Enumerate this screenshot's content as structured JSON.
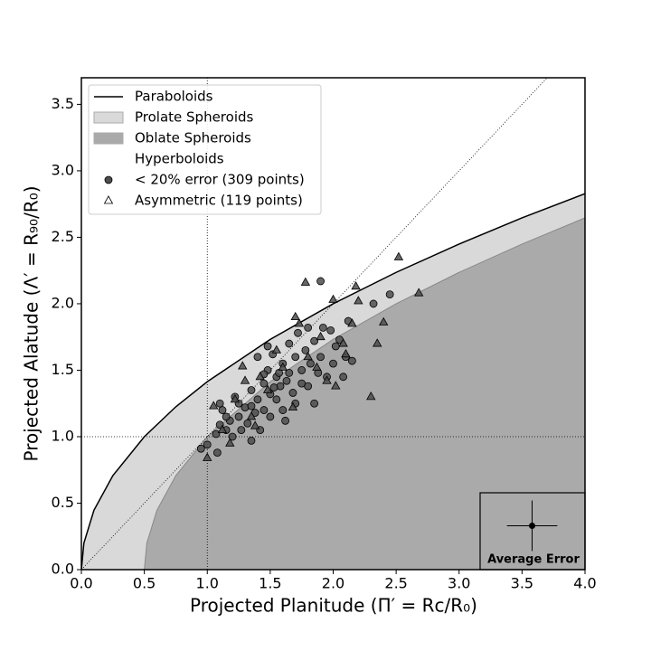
{
  "chart_data": {
    "type": "scatter",
    "xlabel": "Projected Planitude (Π′ = Rc/R₀)",
    "ylabel": "Projected Alatude (Λ′ = R₉₀/R₀)",
    "xlim": [
      0,
      4
    ],
    "ylim": [
      0,
      3.7
    ],
    "xticks": [
      {
        "value": 0,
        "label": "0.0"
      },
      {
        "value": 0.5,
        "label": "0.5"
      },
      {
        "value": 1,
        "label": "1.0"
      },
      {
        "value": 1.5,
        "label": "1.5"
      },
      {
        "value": 2,
        "label": "2.0"
      },
      {
        "value": 2.5,
        "label": "2.5"
      },
      {
        "value": 3,
        "label": "3.0"
      },
      {
        "value": 3.5,
        "label": "3.5"
      },
      {
        "value": 4,
        "label": "4.0"
      }
    ],
    "yticks": [
      {
        "value": 0,
        "label": "0.0"
      },
      {
        "value": 0.5,
        "label": "0.5"
      },
      {
        "value": 1,
        "label": "1.0"
      },
      {
        "value": 1.5,
        "label": "1.5"
      },
      {
        "value": 2,
        "label": "2.0"
      },
      {
        "value": 2.5,
        "label": "2.5"
      },
      {
        "value": 3,
        "label": "3.0"
      },
      {
        "value": 3.5,
        "label": "3.5"
      }
    ],
    "vlines": [
      1
    ],
    "hlines": [
      1
    ],
    "diagonal": true,
    "legend": "upper left",
    "series": [
      {
        "name": "Paraboloids",
        "kind": "line",
        "color": "#000000",
        "x": [
          0,
          0.02,
          0.1,
          0.25,
          0.5,
          0.75,
          1,
          1.5,
          2,
          2.5,
          3,
          3.5,
          4
        ],
        "values": [
          0,
          0.2,
          0.447,
          0.707,
          1,
          1.225,
          1.414,
          1.732,
          2,
          2.236,
          2.449,
          2.646,
          2.828
        ]
      },
      {
        "name": "Prolate Spheroids",
        "kind": "area",
        "color": "#d9d9d9",
        "x": [
          0,
          0.02,
          0.1,
          0.25,
          0.5,
          0.75,
          1,
          1.5,
          2,
          2.5,
          3,
          3.5,
          4
        ],
        "values": [
          0,
          0.2,
          0.447,
          0.707,
          1,
          1.225,
          1.414,
          1.732,
          2,
          2.236,
          2.449,
          2.646,
          2.828
        ]
      },
      {
        "name": "Oblate Spheroids",
        "kind": "area",
        "color": "#aaaaaa",
        "x": [
          0.5,
          0.52,
          0.6,
          0.75,
          1,
          1.5,
          2,
          2.5,
          3,
          3.5,
          4
        ],
        "values": [
          0,
          0.2,
          0.447,
          0.707,
          1,
          1.414,
          1.732,
          2,
          2.236,
          2.449,
          2.646
        ]
      },
      {
        "name": "Hyperboloids",
        "kind": "none",
        "color": "#ffffff"
      },
      {
        "name": "< 20% error (309 points)",
        "kind": "scatter",
        "marker": "circle",
        "color": "#4d4d4d",
        "x": [
          0.95,
          1.0,
          1.08,
          1.07,
          1.1,
          1.12,
          1.1,
          1.15,
          1.18,
          1.2,
          1.22,
          1.25,
          1.27,
          1.3,
          1.32,
          1.35,
          1.35,
          1.38,
          1.4,
          1.42,
          1.45,
          1.45,
          1.48,
          1.5,
          1.5,
          1.52,
          1.55,
          1.55,
          1.58,
          1.6,
          1.6,
          1.62,
          1.65,
          1.65,
          1.68,
          1.7,
          1.7,
          1.72,
          1.75,
          1.75,
          1.78,
          1.8,
          1.8,
          1.82,
          1.85,
          1.85,
          1.88,
          1.9,
          1.9,
          1.92,
          1.95,
          1.98,
          2.0,
          2.02,
          2.05,
          2.08,
          2.1,
          2.12,
          2.15,
          2.32,
          2.45,
          1.48,
          1.4,
          1.25,
          1.15,
          1.57,
          1.63,
          1.45,
          1.53,
          1.35
        ],
        "values": [
          0.91,
          0.94,
          0.88,
          1.02,
          1.09,
          1.2,
          1.25,
          1.05,
          1.12,
          1.0,
          1.3,
          1.15,
          1.05,
          1.22,
          1.1,
          0.97,
          1.35,
          1.18,
          1.28,
          1.05,
          1.4,
          1.2,
          1.5,
          1.32,
          1.15,
          1.62,
          1.45,
          1.28,
          1.38,
          1.55,
          1.2,
          1.12,
          1.48,
          1.7,
          1.33,
          1.6,
          1.25,
          1.78,
          1.5,
          1.4,
          1.65,
          1.38,
          1.82,
          1.55,
          1.25,
          1.72,
          1.48,
          2.17,
          1.6,
          1.82,
          1.45,
          1.8,
          1.55,
          1.68,
          1.73,
          1.45,
          1.6,
          1.87,
          1.57,
          2.0,
          2.07,
          1.68,
          1.6,
          1.25,
          1.15,
          1.48,
          1.42,
          1.47,
          1.37,
          1.23
        ]
      },
      {
        "name": "Asymmetric (119 points)",
        "kind": "scatter",
        "marker": "triangle",
        "color": "#4d4d4d",
        "x": [
          1.0,
          1.05,
          1.12,
          1.18,
          1.22,
          1.28,
          1.3,
          1.38,
          1.42,
          1.55,
          1.6,
          1.68,
          1.7,
          1.73,
          1.78,
          1.8,
          1.87,
          1.95,
          2.0,
          2.02,
          2.1,
          2.15,
          2.18,
          2.2,
          2.3,
          2.35,
          2.4,
          2.52,
          2.68,
          1.48,
          1.35,
          1.9,
          2.08
        ],
        "values": [
          0.84,
          1.23,
          1.05,
          0.95,
          1.28,
          1.53,
          1.42,
          1.08,
          1.45,
          1.65,
          1.52,
          1.22,
          1.9,
          1.85,
          2.16,
          1.6,
          1.52,
          1.42,
          2.03,
          1.38,
          1.62,
          1.85,
          2.13,
          2.02,
          1.3,
          1.7,
          1.86,
          2.35,
          2.08,
          1.35,
          1.15,
          1.75,
          1.7
        ]
      }
    ],
    "error_inset": {
      "label": "Average Error",
      "x": 3.58,
      "y": 0.33,
      "xerr": 0.2,
      "yerr": 0.19
    }
  }
}
